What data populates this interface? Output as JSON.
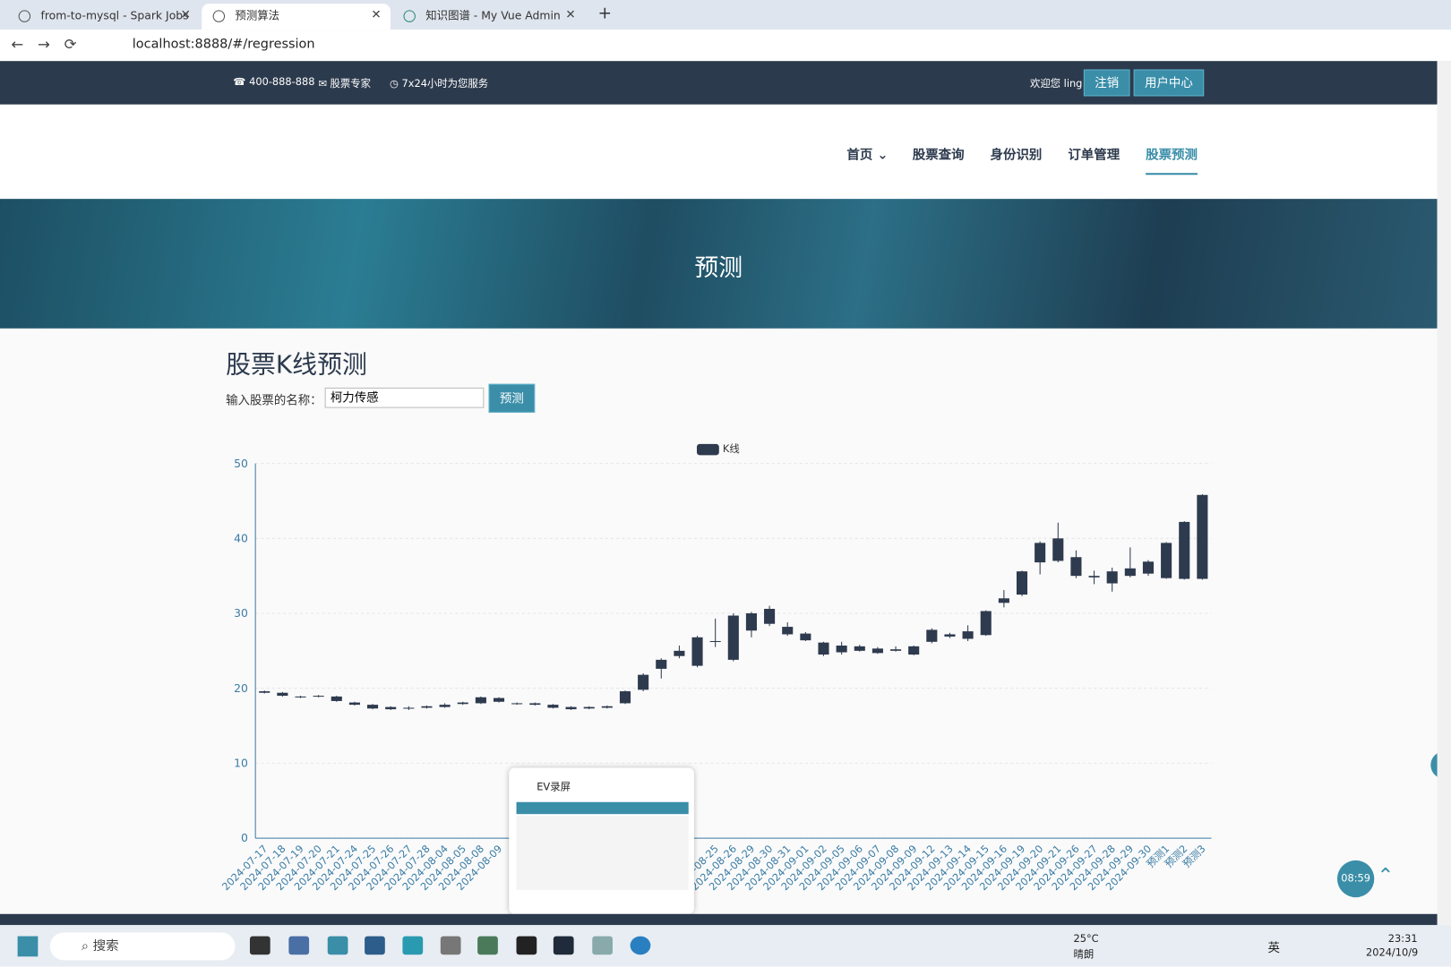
{
  "browser": {
    "tabs": [
      "from-to-mysql - Spark Jobs",
      "预测算法",
      "知识图谱 - My Vue Admin"
    ],
    "url": "localhost:8888/#/regression"
  },
  "topbar": {
    "phone": "400-888-888",
    "expert": "股票专家",
    "service": "7x24小时为您服务",
    "welcome": "欢迎您 ling",
    "logout": "注销",
    "user_center": "用户中心"
  },
  "nav": [
    "首页",
    "股票查询",
    "身份识别",
    "订单管理",
    "股票预测"
  ],
  "banner": "预测",
  "form": {
    "title": "股票K线预测",
    "label": "输入股票的名称：",
    "input": "柯力传感",
    "button": "预测"
  },
  "chart_data": {
    "type": "candlestick",
    "grid": true,
    "ylim": [
      0,
      50
    ],
    "yticks": [
      0,
      10,
      20,
      30,
      40,
      50
    ],
    "categories": [
      "2024-07-17",
      "2024-07-18",
      "2024-07-19",
      "2024-07-20",
      "2024-07-21",
      "2024-07-24",
      "2024-07-25",
      "2024-07-26",
      "2024-07-27",
      "2024-07-28",
      "2024-08-04",
      "2024-08-05",
      "2024-08-08",
      "2024-08-09",
      null,
      null,
      null,
      null,
      null,
      null,
      null,
      null,
      null,
      null,
      null,
      "2024-08-25",
      "2024-08-26",
      "2024-08-29",
      "2024-08-30",
      "2024-08-31",
      "2024-09-01",
      "2024-09-02",
      "2024-09-05",
      "2024-09-06",
      "2024-09-07",
      "2024-09-08",
      "2024-09-09",
      "2024-09-12",
      "2024-09-13",
      "2024-09-14",
      "2024-09-15",
      "2024-09-16",
      "2024-09-19",
      "2024-09-20",
      "2024-09-21",
      "2024-09-26",
      "2024-09-27",
      "2024-09-28",
      "2024-09-29",
      "2024-09-30",
      "预测1",
      "预测2",
      "预测3"
    ],
    "series": [
      {
        "name": "K线",
        "color": "#2e3a4e",
        "open": [
          19.4,
          19.4,
          18.9,
          19.0,
          18.9,
          18.1,
          17.8,
          17.5,
          17.4,
          17.4,
          17.5,
          17.9,
          18.0,
          18.7,
          18.0,
          18.0,
          17.8,
          17.5,
          17.3,
          17.4,
          18.0,
          19.8,
          22.6,
          24.3,
          23.0,
          26.2,
          23.8,
          27.7,
          28.6,
          28.2,
          27.3,
          26.1,
          25.7,
          25.6,
          25.3,
          25.0,
          24.5,
          26.2,
          26.9,
          26.6,
          27.1,
          31.4,
          32.5,
          36.8,
          37.0,
          37.5,
          35.0,
          35.6,
          35.0,
          35.3,
          34.7,
          34.6,
          34.6
        ],
        "close": [
          19.6,
          19.0,
          18.8,
          18.9,
          18.3,
          17.8,
          17.3,
          17.2,
          17.3,
          17.6,
          17.8,
          18.1,
          18.8,
          18.2,
          17.9,
          17.8,
          17.4,
          17.2,
          17.5,
          17.6,
          19.6,
          21.8,
          23.8,
          25.0,
          26.8,
          26.3,
          29.7,
          30.0,
          30.6,
          27.2,
          26.4,
          24.5,
          24.8,
          25.0,
          24.7,
          25.2,
          25.6,
          27.8,
          27.2,
          27.6,
          30.3,
          32.0,
          35.6,
          39.4,
          40.0,
          35.0,
          34.8,
          34.0,
          36.0,
          36.9,
          39.4,
          42.2,
          45.8
        ],
        "low": [
          19.3,
          18.9,
          18.7,
          18.8,
          18.2,
          17.7,
          17.2,
          17.1,
          17.1,
          17.3,
          17.4,
          17.8,
          17.9,
          18.1,
          17.8,
          17.7,
          17.3,
          17.1,
          17.2,
          17.3,
          17.9,
          19.6,
          21.3,
          24.0,
          22.8,
          25.5,
          23.6,
          26.8,
          28.3,
          27.0,
          26.3,
          24.3,
          24.5,
          24.9,
          24.6,
          24.9,
          24.4,
          26.0,
          26.7,
          26.3,
          27.0,
          30.8,
          32.3,
          35.2,
          36.8,
          34.7,
          33.9,
          32.9,
          34.8,
          35.0,
          34.6,
          34.5,
          34.5
        ],
        "high": [
          19.7,
          19.5,
          19.0,
          19.1,
          19.0,
          18.2,
          17.9,
          17.6,
          17.6,
          17.7,
          18.0,
          18.2,
          18.9,
          18.8,
          18.1,
          18.1,
          17.9,
          17.6,
          17.6,
          17.7,
          19.7,
          22.0,
          24.0,
          25.7,
          27.0,
          29.3,
          30.0,
          30.2,
          31.0,
          28.8,
          27.5,
          26.2,
          26.2,
          25.8,
          25.5,
          25.6,
          25.7,
          28.0,
          27.4,
          28.4,
          30.4,
          33.1,
          35.7,
          39.6,
          42.1,
          38.4,
          35.7,
          36.1,
          38.8,
          37.1,
          39.5,
          42.3,
          45.9
        ]
      }
    ]
  },
  "overlay": {
    "title": "EV录屏",
    "timer": "08:59"
  },
  "taskbar": {
    "search": "搜索",
    "temp": "25°C",
    "weather": "晴朗",
    "ime": "英",
    "time": "23:31",
    "date": "2024/10/9"
  }
}
